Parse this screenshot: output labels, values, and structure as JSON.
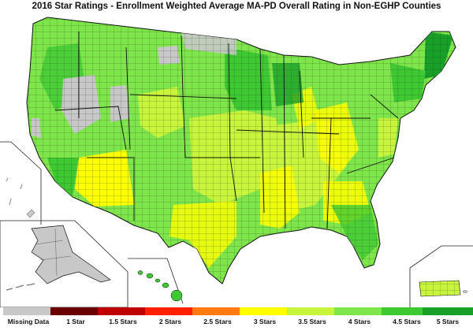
{
  "title": "2016 Star Ratings - Enrollment Weighted Average MA-PD Overall Rating in Non-EGHP Counties",
  "legend": [
    {
      "label": "Missing Data",
      "color": "#c8c8c8"
    },
    {
      "label": "1 Star",
      "color": "#6b0000"
    },
    {
      "label": "1.5 Stars",
      "color": "#c00000"
    },
    {
      "label": "2 Stars",
      "color": "#ff2000"
    },
    {
      "label": "2.5 Stars",
      "color": "#ff7a10"
    },
    {
      "label": "3 Stars",
      "color": "#ffff00"
    },
    {
      "label": "3.5 Stars",
      "color": "#c8f53c"
    },
    {
      "label": "4 Stars",
      "color": "#7ee64a"
    },
    {
      "label": "4.5 Stars",
      "color": "#3ec832"
    },
    {
      "label": "5 Stars",
      "color": "#18a028"
    }
  ]
}
